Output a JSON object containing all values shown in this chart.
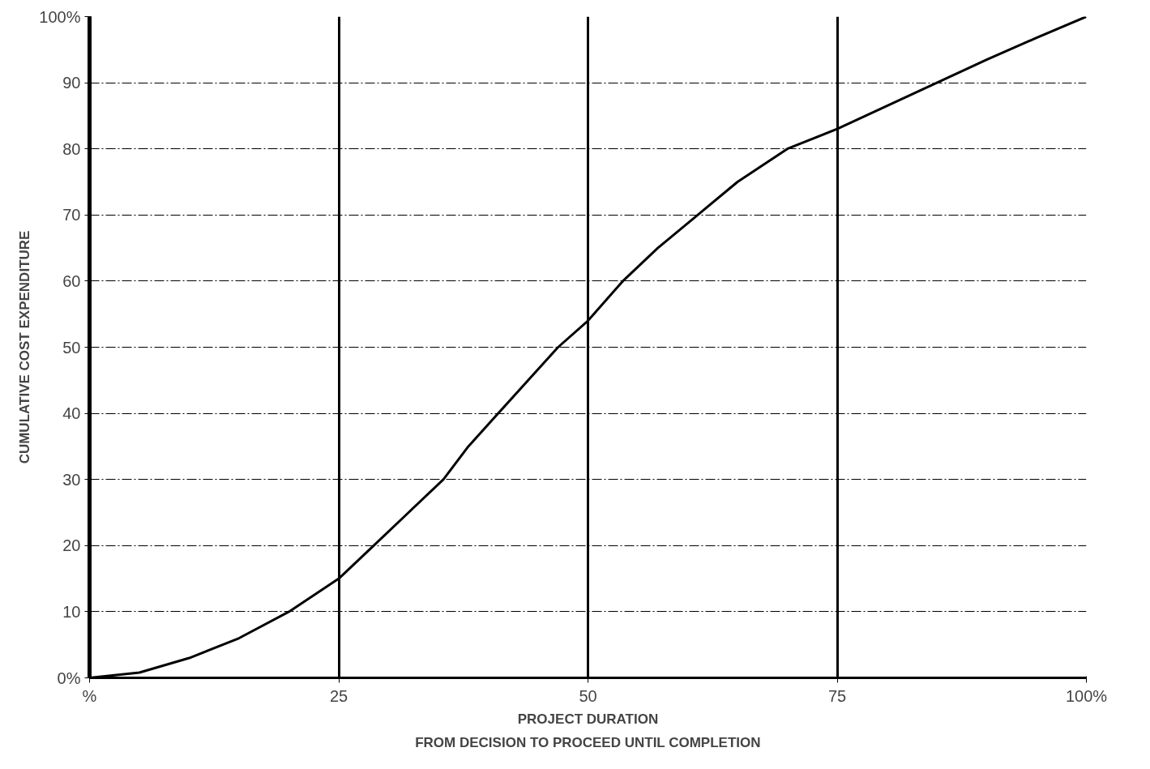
{
  "chart_data": {
    "type": "line",
    "xlabel": "PROJECT DURATION",
    "ylabel": "CUMULATIVE COST EXPENDITURE",
    "annotations": [
      "FROM DECISION TO PROCEED UNTIL COMPLETION"
    ],
    "x": [
      0,
      5,
      10,
      15,
      20,
      25,
      28.5,
      32,
      35.5,
      38,
      41,
      44,
      47,
      50,
      53.5,
      57,
      61,
      65,
      70,
      75,
      80,
      85,
      90,
      95,
      100
    ],
    "series": [
      {
        "color": "#000000",
        "values": [
          0,
          0.8,
          3,
          6,
          10,
          15,
          20,
          25,
          30,
          35,
          40,
          45,
          50,
          54,
          60,
          65,
          70,
          75,
          80,
          83,
          86.5,
          90,
          93.5,
          96.8,
          100
        ]
      }
    ],
    "xlim": [
      0,
      100
    ],
    "ylim": [
      0,
      100
    ],
    "xticks": [
      {
        "value": 0,
        "label": "%"
      },
      25,
      50,
      75,
      {
        "value": 100,
        "label": "100%"
      }
    ],
    "yticks": [
      {
        "value": 0,
        "label": "0%"
      },
      10,
      20,
      30,
      40,
      50,
      60,
      70,
      80,
      90,
      {
        "value": 100,
        "label": "100%"
      }
    ],
    "grid": true,
    "marker": "none",
    "line_style": "solid"
  }
}
